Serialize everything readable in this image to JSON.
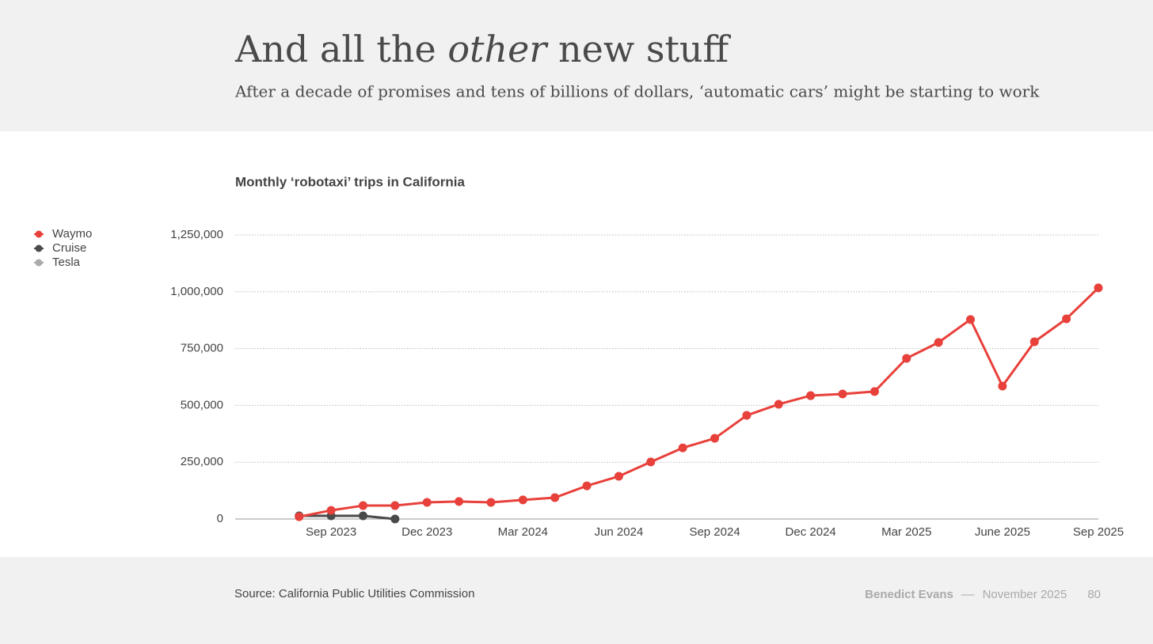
{
  "header": {
    "title": [
      "And all the ",
      "other",
      " new stuff"
    ],
    "subtitle": "After a decade of promises and tens of billions of dollars, ‘automatic cars’ might be starting to work"
  },
  "chart_data": {
    "type": "line",
    "title": "Monthly ‘robotaxi’ trips in California",
    "categories": [
      null,
      "Sep 2023",
      null,
      null,
      "Dec 2023",
      null,
      null,
      "Mar 2024",
      null,
      null,
      "Jun 2024",
      null,
      null,
      "Sep 2024",
      null,
      null,
      "Dec 2024",
      null,
      null,
      "Mar 2025",
      null,
      null,
      "June 2025",
      null,
      null,
      "Sep 2025"
    ],
    "series": [
      {
        "name": "Waymo",
        "color": "#e8403a",
        "values": [
          10000,
          38000,
          59000,
          59000,
          73000,
          77000,
          73000,
          84000,
          94000,
          146000,
          188000,
          251000,
          313000,
          355000,
          456000,
          505000,
          543000,
          550000,
          561000,
          707000,
          777000,
          878000,
          585000,
          780000,
          881000,
          1017000
        ]
      },
      {
        "name": "Cruise",
        "color": "#4a4a4a",
        "values": [
          14000,
          14000,
          14000,
          0,
          null,
          null,
          null,
          null,
          null,
          null,
          null,
          null,
          null,
          null,
          null,
          null,
          null,
          null,
          null,
          null,
          null,
          null,
          null,
          null,
          null,
          null
        ]
      },
      {
        "name": "Tesla",
        "color": "#aaaaaa",
        "values": [
          null,
          null,
          null,
          null,
          null,
          null,
          null,
          null,
          null,
          null,
          null,
          null,
          null,
          null,
          null,
          null,
          null,
          null,
          null,
          null,
          null,
          null,
          null,
          null,
          null,
          null
        ]
      }
    ],
    "ylim": [
      0,
      1250000
    ],
    "yticks": [
      0,
      {
        "value": 250000,
        "label": "250,000"
      },
      {
        "value": 500000,
        "label": "500,000"
      },
      {
        "value": 750000,
        "label": "750,000"
      },
      {
        "value": 1000000,
        "label": "1,000,000"
      },
      {
        "value": 1250000,
        "label": "1,250,000"
      }
    ],
    "grid": true,
    "legend": "left"
  },
  "footer": {
    "source": "Source: California Public Utilities Commission",
    "author": "Benedict Evans",
    "separator": "––",
    "date": "November 2025",
    "page": "80"
  }
}
